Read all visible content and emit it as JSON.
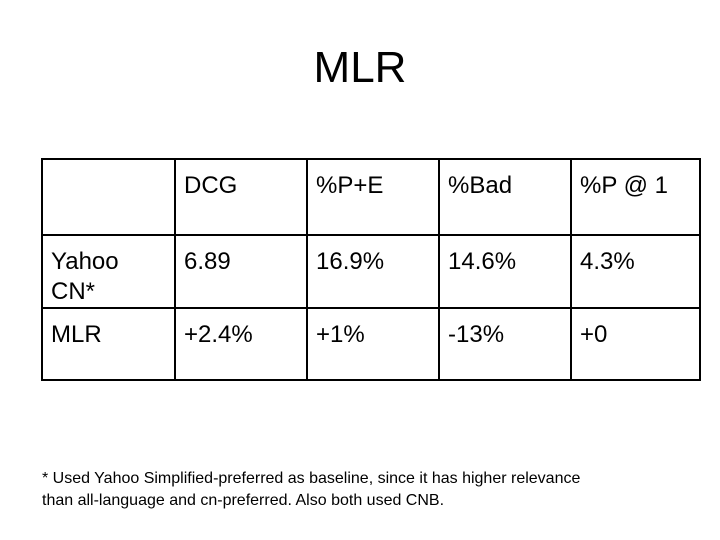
{
  "title": "MLR",
  "table": {
    "header": [
      "",
      "DCG",
      "%P+E",
      "%Bad",
      "%P @ 1"
    ],
    "rows": [
      {
        "label_line1": "Yahoo",
        "label_line2": "CN*",
        "values": [
          "6.89",
          "16.9%",
          "14.6%",
          "4.3%"
        ]
      },
      {
        "label_line1": "MLR",
        "label_line2": "",
        "values": [
          "+2.4%",
          "+1%",
          "-13%",
          "+0"
        ]
      }
    ]
  },
  "footnote": {
    "line1": "* Used Yahoo Simplified-preferred as baseline, since it has higher relevance",
    "line2": "than all-language and cn-preferred. Also both used CNB."
  }
}
